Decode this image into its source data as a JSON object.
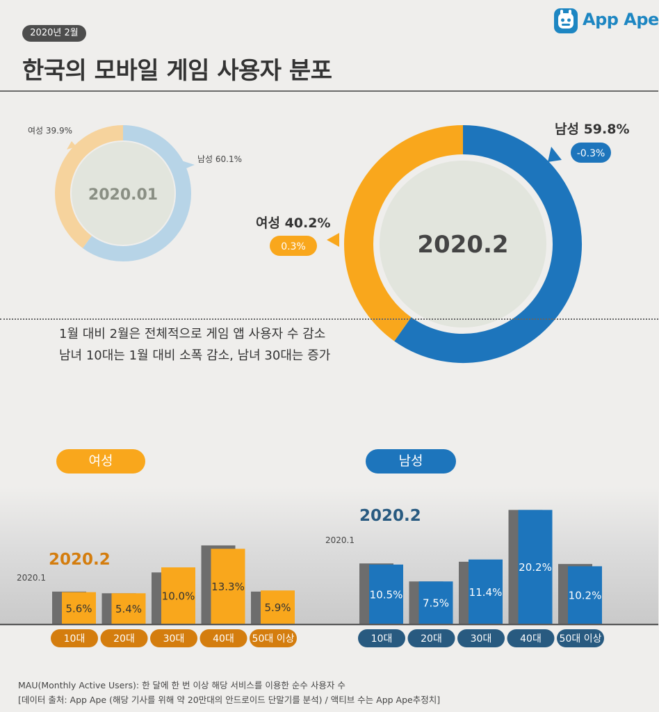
{
  "header": {
    "date_badge": "2020년 2월",
    "title": "한국의 모바일 게임 사용자 분포",
    "brand": "App Ape"
  },
  "summary": [
    "1월 대비 2월은 전체적으로 게임 앱 사용자 수 감소",
    "남녀 10대는 1월 대비 소폭 감소, 남녀 30대는 증가"
  ],
  "colors": {
    "female": "#f9a71c",
    "male": "#1d75bc",
    "female_light": "#f6d39d",
    "male_light": "#b7d4e7",
    "prev": "#6d6d6d",
    "female_dark": "#d47d0e",
    "male_dark": "#285a80"
  },
  "footer": [
    "MAU(Monthly Active Users):  한 달에 한 번 이상 해당 서비스를 이용한 순수 사용자 수",
    "[데이터 출처: App Ape (해당 기사를 위해 약 20만대의 안드로이드 단말기를 분석) / 액티브 수는 App Ape추정치]"
  ],
  "chart_data": [
    {
      "type": "pie",
      "center_label": "2020.01",
      "categories": [
        "남성",
        "여성"
      ],
      "values": [
        60.1,
        39.9
      ],
      "labels": [
        "남성 60.1%",
        "여성 39.9%"
      ]
    },
    {
      "type": "pie",
      "center_label": "2020.2",
      "categories": [
        "남성",
        "여성"
      ],
      "values": [
        59.8,
        40.2
      ],
      "labels": [
        "남성 59.8%",
        "여성 40.2%"
      ],
      "changes": [
        "-0.3%",
        "0.3%"
      ]
    },
    {
      "type": "bar",
      "title": "여성",
      "categories": [
        "10대",
        "20대",
        "30대",
        "40대",
        "50대 이상"
      ],
      "series": [
        {
          "name": "2020.1",
          "values": [
            5.7,
            5.4,
            9.1,
            13.9,
            5.7
          ]
        },
        {
          "name": "2020.2",
          "values": [
            5.6,
            5.4,
            10.0,
            13.3,
            5.9
          ],
          "labels": [
            "5.6%",
            "5.4%",
            "10.0%",
            "13.3%",
            "5.9%"
          ]
        }
      ]
    },
    {
      "type": "bar",
      "title": "남성",
      "categories": [
        "10대",
        "20대",
        "30대",
        "40대",
        "50대 이상"
      ],
      "series": [
        {
          "name": "2020.1",
          "values": [
            10.7,
            7.5,
            11.0,
            20.2,
            10.6
          ]
        },
        {
          "name": "2020.2",
          "values": [
            10.5,
            7.5,
            11.4,
            20.2,
            10.2
          ],
          "labels": [
            "10.5%",
            "7.5%",
            "11.4%",
            "20.2%",
            "10.2%"
          ]
        }
      ]
    }
  ]
}
